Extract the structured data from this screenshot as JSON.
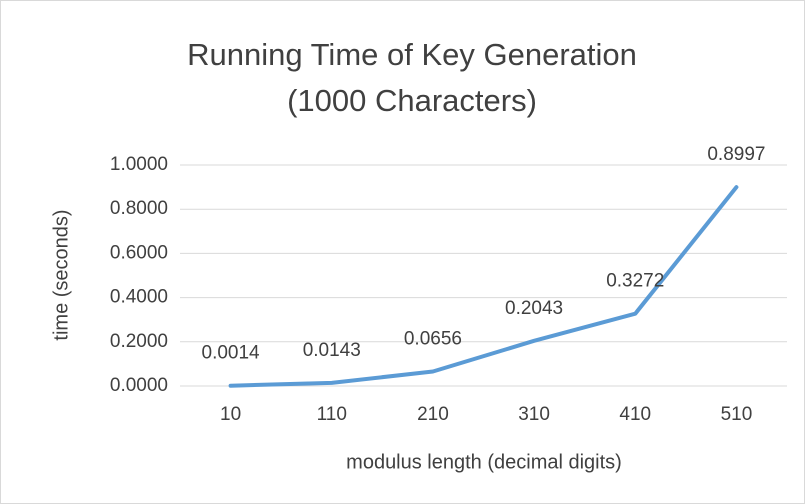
{
  "chart_data": {
    "type": "line",
    "title": [
      "Running Time of Key Generation",
      "(1000 Characters)"
    ],
    "x_label": "modulus length (decimal digits)",
    "y_label": "time (seconds)",
    "categories": [
      "10",
      "110",
      "210",
      "310",
      "410",
      "510"
    ],
    "series": [
      {
        "name": "time",
        "color": "#5b9bd5",
        "values": [
          0.0014,
          0.0143,
          0.0656,
          0.2043,
          0.3272,
          0.8997
        ]
      }
    ],
    "ylim": [
      0,
      1
    ],
    "yticks": [
      {
        "value": 0,
        "label": "0.0000"
      },
      {
        "value": 0.2,
        "label": "0.2000"
      },
      {
        "value": 0.4,
        "label": "0.4000"
      },
      {
        "value": 0.6,
        "label": "0.6000"
      },
      {
        "value": 0.8,
        "label": "0.8000"
      },
      {
        "value": 1,
        "label": "1.0000"
      }
    ],
    "grid": true
  }
}
